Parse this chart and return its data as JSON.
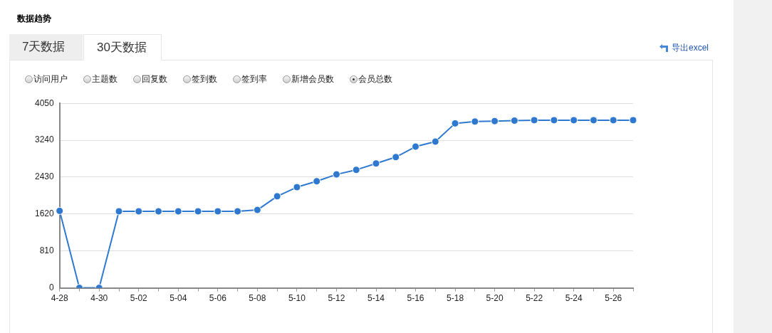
{
  "chart_data": {
    "type": "line",
    "title": "数据趋势",
    "annotations": [
      "7天数据",
      "30天数据",
      "导出excel",
      "访问用户",
      "主题数",
      "回复数",
      "签到数",
      "签到率",
      "新增会员数"
    ],
    "categories": [
      "4-28",
      null,
      "4-30",
      null,
      "5-02",
      null,
      "5-04",
      null,
      "5-06",
      null,
      "5-08",
      null,
      "5-10",
      null,
      "5-12",
      null,
      "5-14",
      null,
      "5-16",
      null,
      "5-18",
      null,
      "5-20",
      null,
      "5-22",
      null,
      "5-24",
      null,
      "5-26",
      null
    ],
    "series": [
      {
        "name": "会员总数",
        "color": "#2f78d0",
        "values": [
          1690,
          0,
          0,
          1680,
          1680,
          1680,
          1680,
          1680,
          1680,
          1680,
          1710,
          2010,
          2210,
          2340,
          2490,
          2590,
          2730,
          2870,
          3100,
          3210,
          3610,
          3650,
          3660,
          3670,
          3680,
          3680,
          3680,
          3680,
          3680,
          3680
        ]
      }
    ],
    "ylim": [
      0,
      4050
    ],
    "yticks": [
      0,
      810,
      1620,
      2430,
      3240,
      4050
    ],
    "grid": "y",
    "legend": "top left",
    "marker": "circle",
    "line_style": "solid"
  }
}
